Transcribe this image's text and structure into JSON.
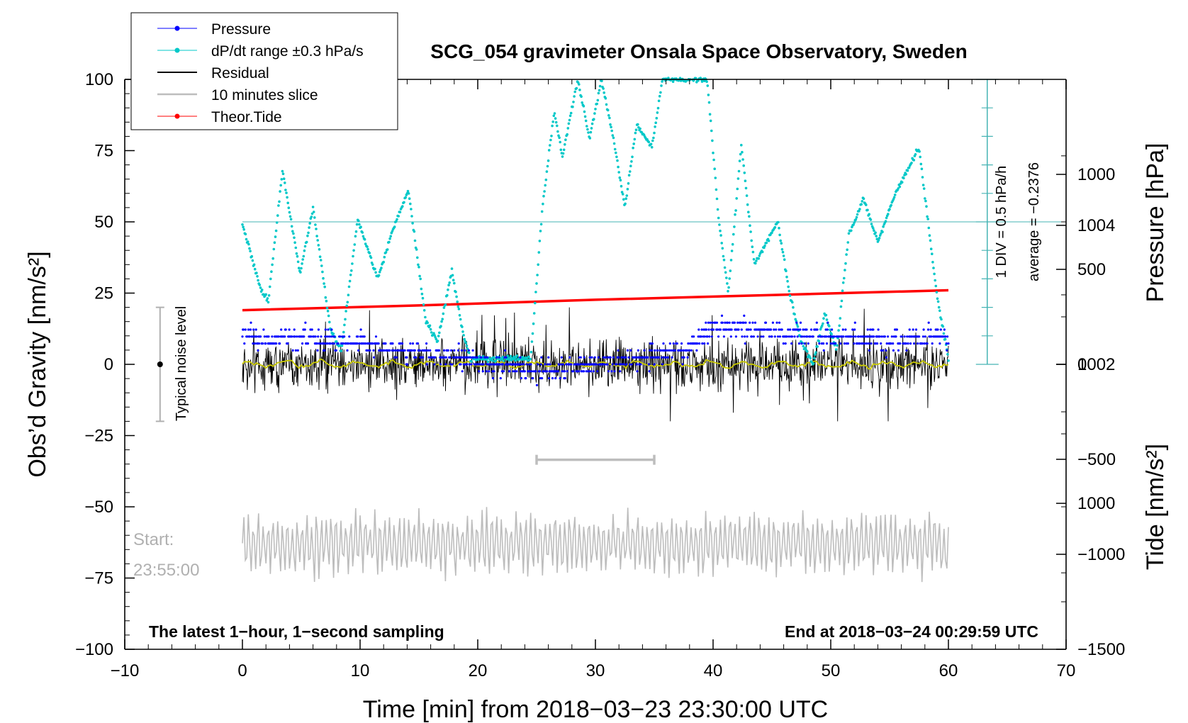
{
  "chart_data": {
    "type": "line",
    "title": "SCG_054 gravimeter Onsala Space Observatory, Sweden",
    "xlabel": "Time [min] from 2018−03−23 23:30:00 UTC",
    "ylabel": "Obs’d Gravity [nm/s²]",
    "xlim": [
      -10,
      70
    ],
    "ylim": [
      -100,
      100
    ],
    "x_ticks": [
      "−10",
      "0",
      "10",
      "20",
      "30",
      "40",
      "50",
      "60",
      "70"
    ],
    "y_ticks": [
      "−100",
      "−75",
      "−50",
      "−25",
      "0",
      "25",
      "50",
      "75",
      "100"
    ],
    "pressure_axis": {
      "label": "Pressure [hPa]",
      "ticks": [
        "1000",
        "1002",
        "1004"
      ],
      "range": [
        997.9,
        1006.1
      ]
    },
    "tide_axis": {
      "label": "Tide [nm/s²]",
      "ticks": [
        "1000",
        "500",
        "0",
        "−500",
        "−1000",
        "−1500"
      ],
      "range": [
        -1500,
        1500
      ]
    },
    "legend": [
      {
        "label": "Pressure",
        "color": "#0000ff"
      },
      {
        "label": "dP/dt range ±0.3 hPa/s",
        "color": "#00c8c8"
      },
      {
        "label": "Residual",
        "color": "#000000"
      },
      {
        "label": "10 minutes slice",
        "color": "#bdbdbd"
      },
      {
        "label": "Theor.Tide",
        "color": "#ff0000"
      }
    ],
    "noise_label": "Typical noise level",
    "noise_range": [
      -20,
      20
    ],
    "dpdt_scale_label": "1 DIV = 0.5 hPa/h",
    "average_label": "average = −0.2376",
    "dpdt_baseline": 50,
    "slice_label_1": "Start:",
    "slice_label_2": "23:55:00",
    "slice_range_min": [
      25,
      35
    ],
    "bottom_left_label": "The latest 1−hour, 1−second sampling",
    "bottom_right_label": "End at 2018−03−24 00:29:59 UTC",
    "pressure_series": [
      {
        "x": 0,
        "y": 1002.4
      },
      {
        "x": 5,
        "y": 1002.35
      },
      {
        "x": 10,
        "y": 1002.3
      },
      {
        "x": 15,
        "y": 1002.2
      },
      {
        "x": 20,
        "y": 1002.05
      },
      {
        "x": 25,
        "y": 1001.9
      },
      {
        "x": 30,
        "y": 1002.0
      },
      {
        "x": 35,
        "y": 1002.1
      },
      {
        "x": 38,
        "y": 1002.25
      },
      {
        "x": 40,
        "y": 1002.55
      },
      {
        "x": 45,
        "y": 1002.5
      },
      {
        "x": 50,
        "y": 1002.4
      },
      {
        "x": 55,
        "y": 1002.35
      },
      {
        "x": 60,
        "y": 1002.35
      }
    ],
    "dpdt_series": [
      {
        "x": 0,
        "y": 49
      },
      {
        "x": 1.5,
        "y": 27
      },
      {
        "x": 2.2,
        "y": 22
      },
      {
        "x": 3.4,
        "y": 68
      },
      {
        "x": 4.9,
        "y": 32
      },
      {
        "x": 6.0,
        "y": 55
      },
      {
        "x": 7.5,
        "y": 12
      },
      {
        "x": 8.4,
        "y": 5
      },
      {
        "x": 9.8,
        "y": 51
      },
      {
        "x": 11.5,
        "y": 30
      },
      {
        "x": 12.6,
        "y": 45
      },
      {
        "x": 14.1,
        "y": 61
      },
      {
        "x": 15.6,
        "y": 15
      },
      {
        "x": 16.6,
        "y": 8
      },
      {
        "x": 17.8,
        "y": 33
      },
      {
        "x": 18.8,
        "y": 10
      },
      {
        "x": 19.4,
        "y": 2
      },
      {
        "x": 22,
        "y": 2
      },
      {
        "x": 24.5,
        "y": 2
      },
      {
        "x": 25.5,
        "y": 55
      },
      {
        "x": 26.5,
        "y": 89
      },
      {
        "x": 27.2,
        "y": 73
      },
      {
        "x": 28.5,
        "y": 100
      },
      {
        "x": 29.5,
        "y": 79
      },
      {
        "x": 30.5,
        "y": 100
      },
      {
        "x": 31.5,
        "y": 80
      },
      {
        "x": 32.5,
        "y": 55
      },
      {
        "x": 33.5,
        "y": 84
      },
      {
        "x": 34.8,
        "y": 76
      },
      {
        "x": 35.7,
        "y": 100
      },
      {
        "x": 39.5,
        "y": 100
      },
      {
        "x": 40.5,
        "y": 50
      },
      {
        "x": 41.3,
        "y": 25
      },
      {
        "x": 42.4,
        "y": 77
      },
      {
        "x": 43.5,
        "y": 35
      },
      {
        "x": 45.5,
        "y": 50
      },
      {
        "x": 46.5,
        "y": 25
      },
      {
        "x": 47.5,
        "y": 8
      },
      {
        "x": 48.5,
        "y": 0
      },
      {
        "x": 49.5,
        "y": 18
      },
      {
        "x": 50.5,
        "y": 5
      },
      {
        "x": 51.5,
        "y": 45
      },
      {
        "x": 52.8,
        "y": 58
      },
      {
        "x": 54,
        "y": 43
      },
      {
        "x": 55.5,
        "y": 60
      },
      {
        "x": 57.5,
        "y": 76
      },
      {
        "x": 59,
        "y": 25
      },
      {
        "x": 60,
        "y": 2
      }
    ],
    "tide_series": [
      {
        "x": 0,
        "y": 285
      },
      {
        "x": 15,
        "y": 310
      },
      {
        "x": 30,
        "y": 340
      },
      {
        "x": 45,
        "y": 365
      },
      {
        "x": 60,
        "y": 390
      }
    ]
  }
}
